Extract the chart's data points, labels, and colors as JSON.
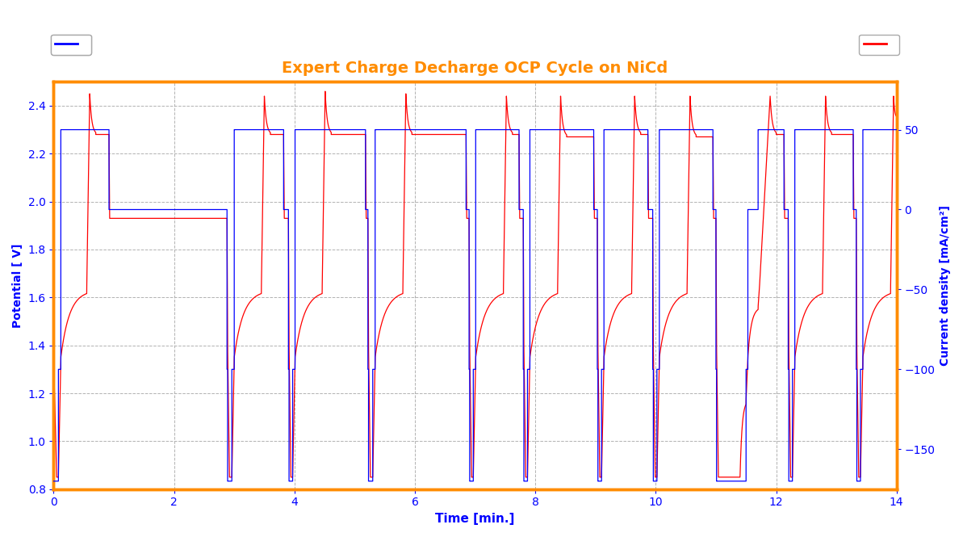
{
  "title": "Expert Charge Decharge OCP Cycle on NiCd",
  "title_color": "#FF8C00",
  "xlabel": "Time [min.]",
  "ylabel_left": "Potential [ V]",
  "ylabel_right": "Current density [mA/cm²]",
  "xlim": [
    0,
    14
  ],
  "ylim_left": [
    0.8,
    2.5
  ],
  "ylim_right": [
    -175,
    80
  ],
  "background_color": "#FFFFFF",
  "border_color": "#FF8C00",
  "grid_color": "#AAAAAA",
  "axis_color": "#0000FF",
  "red_color": "#FF0000",
  "blue_color": "#0000FF",
  "xticks": [
    0,
    2,
    4,
    6,
    8,
    10,
    12,
    14
  ],
  "yticks_left": [
    0.8,
    1.0,
    1.2,
    1.4,
    1.6,
    1.8,
    2.0,
    2.2,
    2.4
  ],
  "yticks_right": [
    -150,
    -100,
    -50,
    0,
    50
  ]
}
